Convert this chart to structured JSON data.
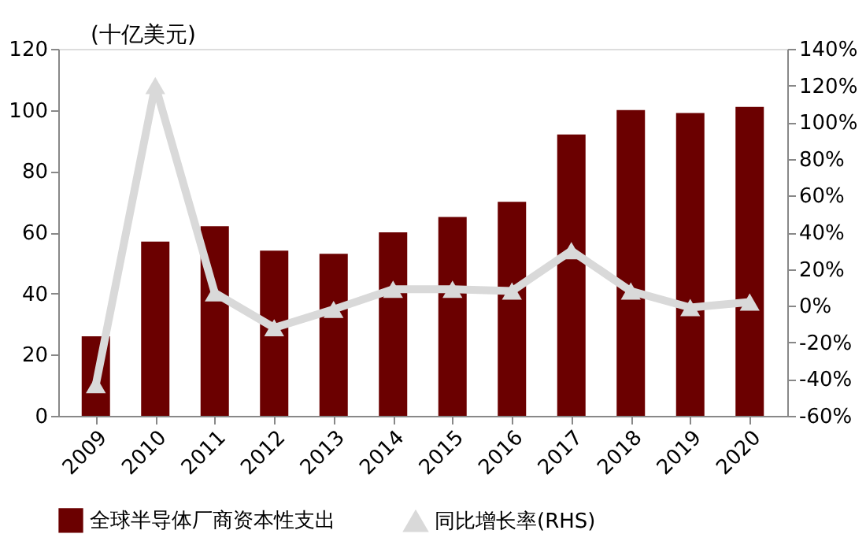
{
  "chart_data": {
    "type": "bar",
    "categories": [
      "2009",
      "2010",
      "2011",
      "2012",
      "2013",
      "2014",
      "2015",
      "2016",
      "2017",
      "2018",
      "2019",
      "2020"
    ],
    "ylabel": "(十亿美元)",
    "series": [
      {
        "name": "全球半导体厂商资本性支出",
        "color": "#6b0000",
        "values": [
          26,
          57,
          62,
          54,
          53,
          60,
          65,
          70,
          92,
          100,
          99,
          101
        ]
      },
      {
        "name": "同比增长率(RHS)",
        "color": "#d9d9d9",
        "type": "line",
        "axis": "y2",
        "marker": "triangle",
        "values": [
          -43,
          120,
          7,
          -12,
          -2,
          9,
          9,
          8,
          30,
          8,
          -1,
          2
        ]
      }
    ],
    "ylim": [
      0,
      120
    ],
    "yticks": [
      0,
      20,
      40,
      60,
      80,
      100,
      120
    ],
    "y2lim": [
      -60,
      140
    ],
    "y2ticks": [
      {
        "value": -60,
        "label": "-60%"
      },
      {
        "value": -40,
        "label": "-40%"
      },
      {
        "value": -20,
        "label": "-20%"
      },
      {
        "value": 0,
        "label": "0%"
      },
      {
        "value": 20,
        "label": "20%"
      },
      {
        "value": 40,
        "label": "40%"
      },
      {
        "value": 60,
        "label": "60%"
      },
      {
        "value": 80,
        "label": "80%"
      },
      {
        "value": 100,
        "label": "100%"
      },
      {
        "value": 120,
        "label": "120%"
      },
      {
        "value": 140,
        "label": "140%"
      }
    ],
    "grid": false,
    "legend": "bottom"
  }
}
